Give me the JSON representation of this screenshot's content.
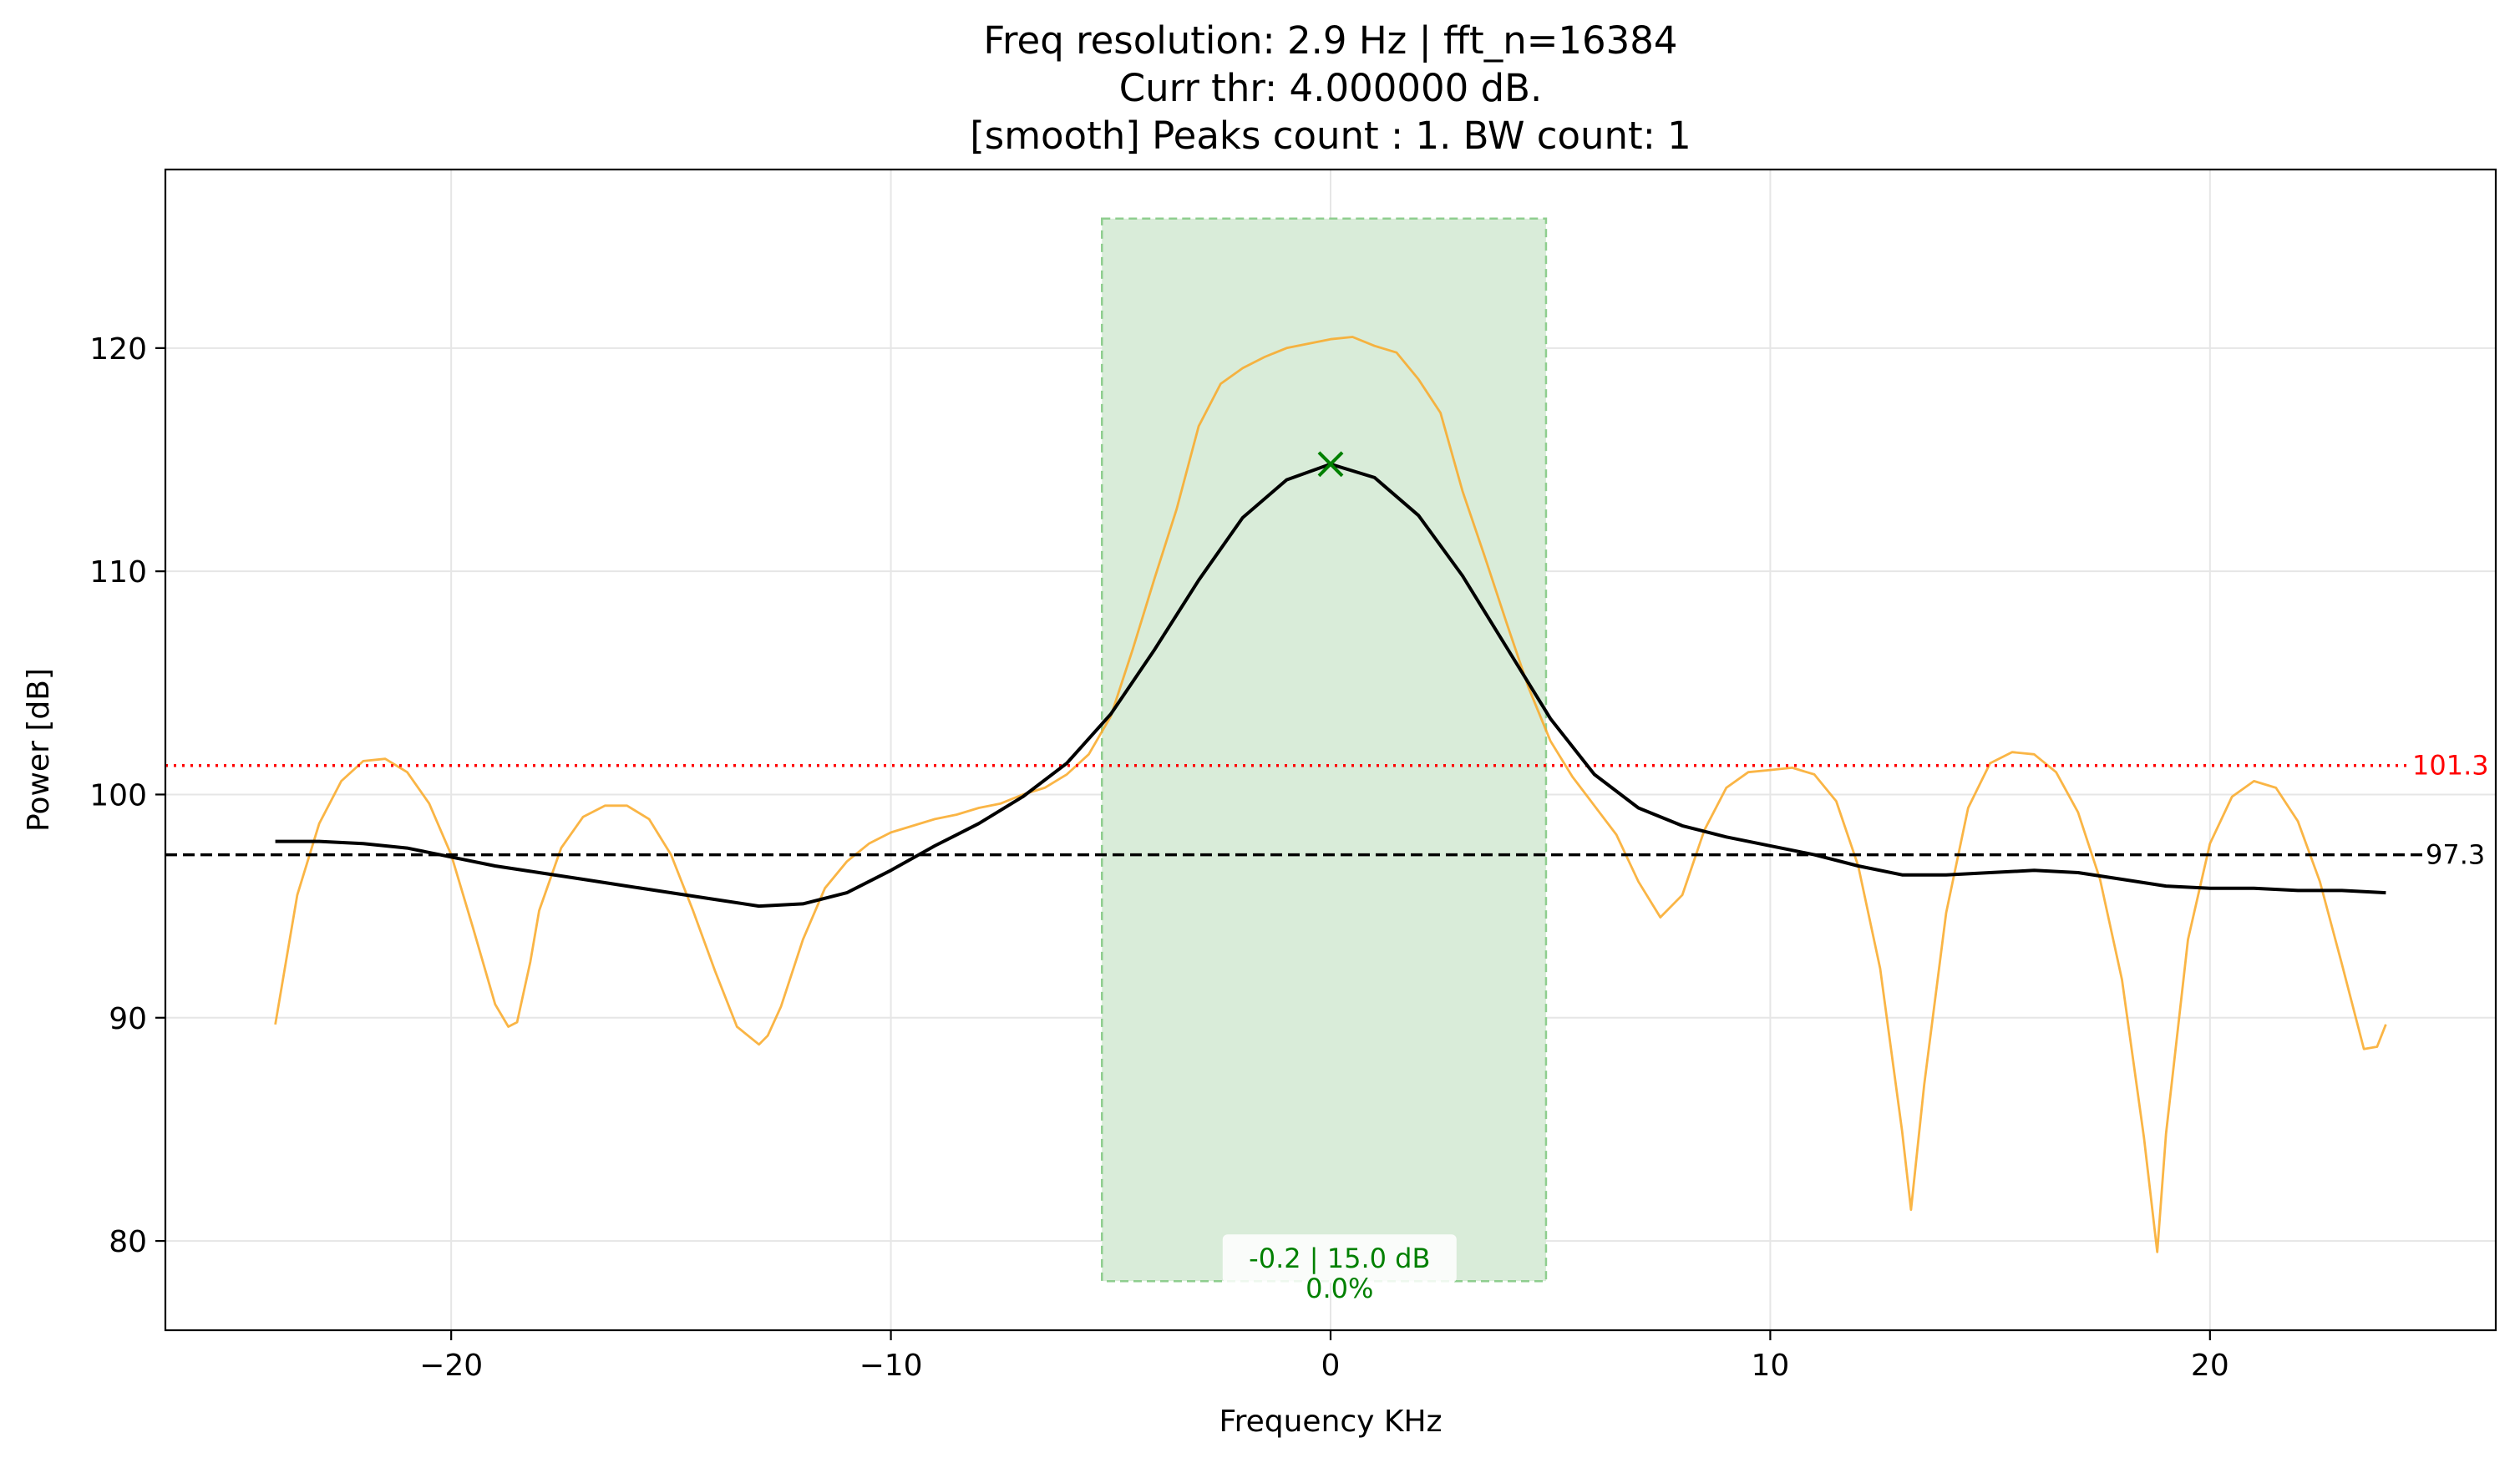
{
  "chart_data": {
    "type": "line",
    "title_lines": [
      "Freq resolution: 2.9 Hz | fft_n=16384",
      "Curr thr: 4.000000 dB.",
      "[smooth] Peaks count : 1. BW count: 1"
    ],
    "xlabel": "Frequency KHz",
    "ylabel": "Power [dB]",
    "xlim": [
      -26.5,
      26.5
    ],
    "ylim": [
      76,
      128
    ],
    "xticks": [
      -20,
      -10,
      0,
      10,
      20
    ],
    "xtick_labels": [
      "−20",
      "−10",
      "0",
      "10",
      "20"
    ],
    "yticks": [
      80,
      90,
      100,
      110,
      120
    ],
    "ytick_labels": [
      "80",
      "90",
      "100",
      "110",
      "120"
    ],
    "grid": true,
    "colors": {
      "raw_spectrum": "#f9a825",
      "smoothed": "#000000",
      "threshold": "#ff0000",
      "noise_floor": "#000000",
      "band_fill": "#d9ecd9",
      "band_edge": "#8fce8f",
      "peak_marker": "#008000",
      "annotation": "#008000"
    },
    "band": {
      "x0": -5.2,
      "x1": 4.9,
      "y0": 78.2,
      "y1": 125.8
    },
    "reference_lines": [
      {
        "name": "threshold",
        "y": 101.3,
        "label": "101.3",
        "style": "dotted"
      },
      {
        "name": "noise_floor",
        "y": 97.3,
        "label": "97.3",
        "style": "dashed"
      }
    ],
    "peak": {
      "x": 0.0,
      "y": 114.8
    },
    "annotation": {
      "x": 0.3,
      "lines": [
        "-0.2 | 15.0 dB",
        "0.0%"
      ]
    },
    "series": [
      {
        "type": "line",
        "role": "raw",
        "x": [
          -24,
          -23.5,
          -23,
          -22.5,
          -22,
          -21.5,
          -21,
          -20.5,
          -20,
          -19.5,
          -19,
          -18.7,
          -18.5,
          -18.2,
          -18,
          -17.5,
          -17,
          -16.5,
          -16,
          -15.5,
          -15,
          -14.5,
          -14,
          -13.5,
          -13,
          -12.8,
          -12.5,
          -12,
          -11.5,
          -11,
          -10.5,
          -10,
          -9.5,
          -9,
          -8.5,
          -8,
          -7.5,
          -7,
          -6.5,
          -6,
          -5.5,
          -5,
          -4.5,
          -4,
          -3.5,
          -3,
          -2.5,
          -2,
          -1.5,
          -1,
          -0.5,
          0,
          0.5,
          1,
          1.5,
          2,
          2.5,
          3,
          3.5,
          4,
          4.5,
          5,
          5.5,
          6,
          6.5,
          7,
          7.5,
          8,
          8.5,
          9,
          9.5,
          10,
          10.5,
          11,
          11.5,
          12,
          12.5,
          13,
          13.2,
          13.5,
          14,
          14.5,
          15,
          15.5,
          16,
          16.5,
          17,
          17.5,
          18,
          18.5,
          18.8,
          19,
          19.5,
          20,
          20.5,
          21,
          21.5,
          22,
          22.5,
          23,
          23.5,
          23.8,
          24
        ],
        "y": [
          89.7,
          95.5,
          98.7,
          100.6,
          101.5,
          101.6,
          101.0,
          99.6,
          97.3,
          94.0,
          90.6,
          89.6,
          89.8,
          92.5,
          94.8,
          97.6,
          99.0,
          99.5,
          99.5,
          98.9,
          97.3,
          94.8,
          92.1,
          89.6,
          88.8,
          89.2,
          90.5,
          93.5,
          95.8,
          97.0,
          97.8,
          98.3,
          98.6,
          98.9,
          99.1,
          99.4,
          99.6,
          100.0,
          100.3,
          100.9,
          101.8,
          103.5,
          106.5,
          109.7,
          112.8,
          116.5,
          118.4,
          119.1,
          119.6,
          120.0,
          120.2,
          120.4,
          120.5,
          120.1,
          119.8,
          118.6,
          117.1,
          113.6,
          110.7,
          107.7,
          104.8,
          102.4,
          100.8,
          99.5,
          98.2,
          96.1,
          94.5,
          95.5,
          98.4,
          100.3,
          101.0,
          101.1,
          101.2,
          100.9,
          99.7,
          96.8,
          92.2,
          84.9,
          81.4,
          87.0,
          94.7,
          99.4,
          101.4,
          101.9,
          101.8,
          101.0,
          99.2,
          96.2,
          91.7,
          84.6,
          79.5,
          84.8,
          93.5,
          97.8,
          99.9,
          100.6,
          100.3,
          98.8,
          96.1,
          92.4,
          88.6,
          88.7,
          89.7
        ]
      },
      {
        "type": "line",
        "role": "smoothed",
        "x": [
          -24,
          -23,
          -22,
          -21,
          -20,
          -19,
          -18,
          -17,
          -16,
          -15,
          -14,
          -13,
          -12,
          -11,
          -10,
          -9,
          -8,
          -7,
          -6,
          -5,
          -4,
          -3,
          -2,
          -1,
          0,
          1,
          2,
          3,
          4,
          5,
          6,
          7,
          8,
          9,
          10,
          11,
          12,
          13,
          14,
          15,
          16,
          17,
          18,
          19,
          20,
          21,
          22,
          23,
          24
        ],
        "y": [
          97.9,
          97.9,
          97.8,
          97.6,
          97.2,
          96.8,
          96.5,
          96.2,
          95.9,
          95.6,
          95.3,
          95.0,
          95.1,
          95.6,
          96.6,
          97.7,
          98.7,
          99.9,
          101.4,
          103.6,
          106.5,
          109.6,
          112.4,
          114.1,
          114.8,
          114.2,
          112.5,
          109.8,
          106.6,
          103.4,
          100.9,
          99.4,
          98.6,
          98.1,
          97.7,
          97.3,
          96.8,
          96.4,
          96.4,
          96.5,
          96.6,
          96.5,
          96.2,
          95.9,
          95.8,
          95.8,
          95.7,
          95.7,
          95.6
        ]
      }
    ]
  }
}
